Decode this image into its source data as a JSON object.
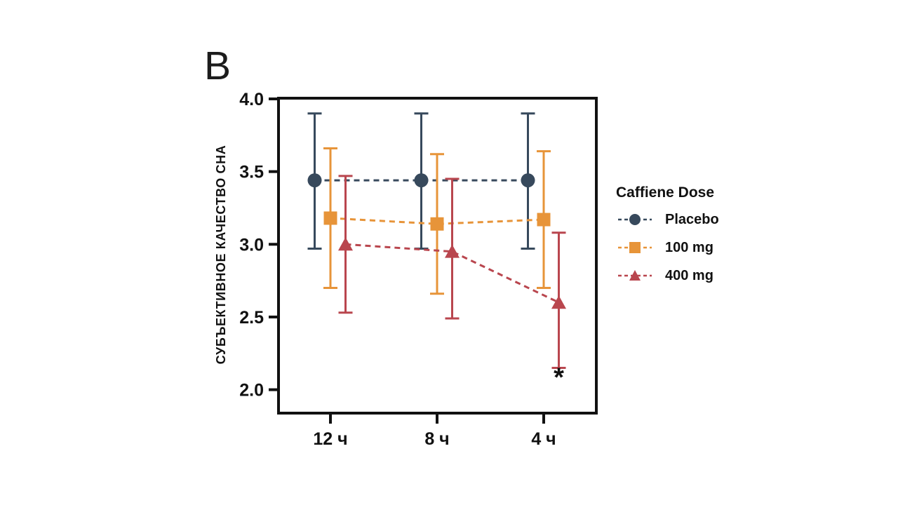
{
  "panel_label": "B",
  "chart_data": {
    "type": "line",
    "title": "",
    "xlabel": "",
    "ylabel": "СУБЪЕКТИВНОЕ КАЧЕСТВО СНА",
    "categories": [
      "12 ч",
      "8 ч",
      "4 ч"
    ],
    "y_axis": {
      "min": 2.0,
      "max": 4.0,
      "tick_labels": [
        "4.0",
        "3.5",
        "3.0",
        "2.5",
        "2.0"
      ],
      "tick_values": [
        4.0,
        3.5,
        3.0,
        2.5,
        2.0
      ]
    },
    "grid": false,
    "legend": {
      "title": "Caffiene Dose",
      "position": "right"
    },
    "series": [
      {
        "name": "Placebo",
        "marker": "circle",
        "line_style": "dashed",
        "color": "#37495c",
        "means": [
          3.44,
          3.44,
          3.44
        ],
        "ci_low": [
          2.97,
          2.97,
          2.97
        ],
        "ci_high": [
          3.9,
          3.9,
          3.9
        ]
      },
      {
        "name": "100 mg",
        "marker": "square",
        "line_style": "dashed",
        "color": "#e79439",
        "means": [
          3.18,
          3.14,
          3.17
        ],
        "ci_low": [
          2.7,
          2.66,
          2.7
        ],
        "ci_high": [
          3.66,
          3.62,
          3.64
        ]
      },
      {
        "name": "400 mg",
        "marker": "triangle",
        "line_style": "dashed",
        "color": "#b9464e",
        "means": [
          3.0,
          2.95,
          2.6
        ],
        "ci_low": [
          2.53,
          2.49,
          2.15
        ],
        "ci_high": [
          3.47,
          3.45,
          3.08
        ]
      }
    ],
    "annotations": [
      {
        "text": "*",
        "series": "400 mg",
        "category": "4 ч",
        "position": "below-errorbar",
        "color": "#111111"
      }
    ]
  }
}
